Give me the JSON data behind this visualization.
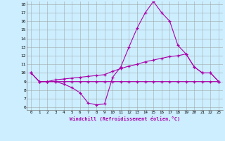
{
  "xlabel": "Windchill (Refroidissement éolien,°C)",
  "x": [
    0,
    1,
    2,
    3,
    4,
    5,
    6,
    7,
    8,
    9,
    10,
    11,
    12,
    13,
    14,
    15,
    16,
    17,
    18,
    19,
    20,
    21,
    22,
    23
  ],
  "line1": [
    10.0,
    9.0,
    9.0,
    9.0,
    8.7,
    8.3,
    7.7,
    6.5,
    6.3,
    6.4,
    9.5,
    10.7,
    13.0,
    15.2,
    17.0,
    18.3,
    17.0,
    16.0,
    13.2,
    12.2,
    10.7,
    10.0,
    10.0,
    9.0
  ],
  "line2": [
    10.0,
    9.0,
    9.0,
    9.2,
    9.3,
    9.4,
    9.5,
    9.6,
    9.7,
    9.8,
    10.2,
    10.5,
    10.8,
    11.0,
    11.3,
    11.5,
    11.7,
    11.9,
    12.0,
    12.2,
    10.7,
    10.0,
    10.0,
    9.0
  ],
  "line3": [
    10.0,
    9.0,
    9.0,
    9.0,
    9.0,
    9.0,
    9.0,
    9.0,
    9.0,
    9.0,
    9.0,
    9.0,
    9.0,
    9.0,
    9.0,
    9.0,
    9.0,
    9.0,
    9.0,
    9.0,
    9.0,
    9.0,
    9.0,
    9.0
  ],
  "color": "#aa00aa",
  "bg_color": "#cceeff",
  "grid_color": "#999999",
  "ylim_min": 6,
  "ylim_max": 18,
  "yticks": [
    6,
    7,
    8,
    9,
    10,
    11,
    12,
    13,
    14,
    15,
    16,
    17,
    18
  ],
  "xticks": [
    0,
    1,
    2,
    3,
    4,
    5,
    6,
    7,
    8,
    9,
    10,
    11,
    12,
    13,
    14,
    15,
    16,
    17,
    18,
    19,
    20,
    21,
    22,
    23
  ]
}
